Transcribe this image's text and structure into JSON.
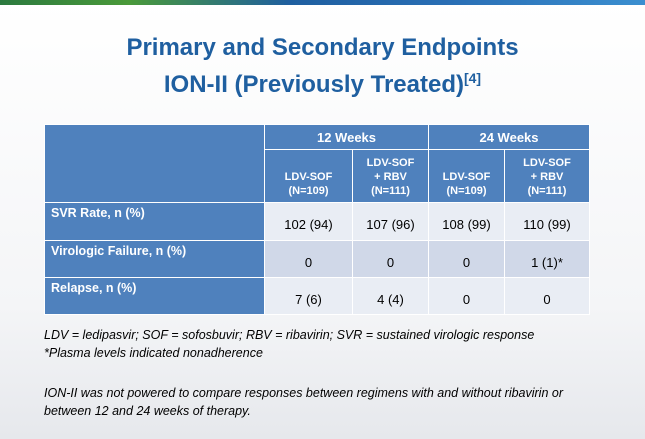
{
  "slide": {
    "title_line1": "Primary and Secondary Endpoints",
    "title_line2": "ION-II (Previously Treated)",
    "title_ref": "[4]"
  },
  "table": {
    "groups": [
      "12 Weeks",
      "24 Weeks"
    ],
    "columns": [
      {
        "drug": "LDV-SOF",
        "n": "(N=109)"
      },
      {
        "drug": "LDV-SOF",
        "extra": "+ RBV",
        "n": "(N=111)"
      },
      {
        "drug": "LDV-SOF",
        "n": "(N=109)"
      },
      {
        "drug": "LDV-SOF",
        "extra": "+ RBV",
        "n": "(N=111)"
      }
    ],
    "rows": [
      {
        "label": "SVR Rate, n (%)",
        "values": [
          "102 (94)",
          "107 (96)",
          "108 (99)",
          "110 (99)"
        ]
      },
      {
        "label": "Virologic Failure, n (%)",
        "values": [
          "0",
          "0",
          "0",
          "1 (1)*"
        ]
      },
      {
        "label": "Relapse, n (%)",
        "values": [
          "7 (6)",
          "4 (4)",
          "0",
          "0"
        ]
      }
    ]
  },
  "notes": {
    "abbreviations": "LDV = ledipasvir; SOF = sofosbuvir; RBV = ribavirin; SVR = sustained virologic response",
    "footnote": "*Plasma levels indicated nonadherence",
    "paragraph": "ION-II was not powered to compare responses between regimens with and without ribavirin or between 12 and 24 weeks of therapy."
  },
  "colors": {
    "title": "#1f5fa0",
    "header": "#4f81bd",
    "row_light": "#e9edf4",
    "row_dark": "#d0d8e8"
  }
}
